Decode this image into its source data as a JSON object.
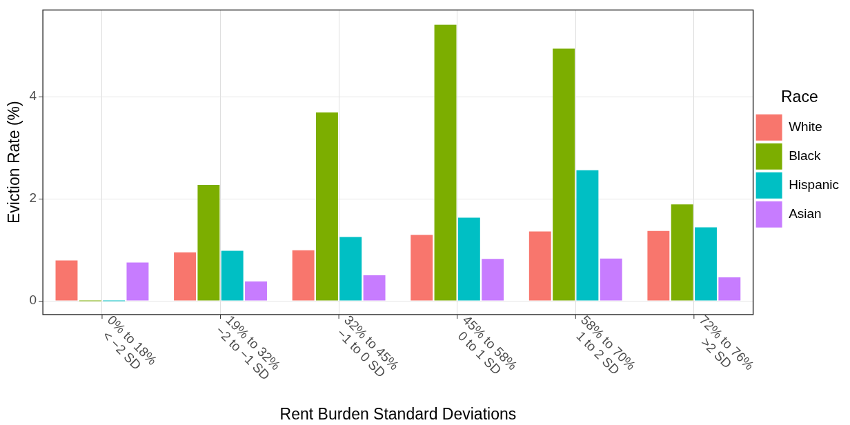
{
  "chart_data": {
    "type": "bar",
    "xlabel": "Rent Burden Standard Deviations",
    "ylabel": "Eviction Rate (%)",
    "legend_title": "Race",
    "categories": [
      "0% to 18%\n< −2 SD",
      "19% to 32%\n−2 to −1 SD",
      "32% to 45%\n−1 to 0 SD",
      "45% to 58%\n0 to 1 SD",
      "58% to 70%\n1 to 2 SD",
      "72% to 76%\n>2 SD"
    ],
    "series": [
      {
        "name": "White",
        "color": "#f8766d",
        "values": [
          0.79,
          0.95,
          0.99,
          1.29,
          1.36,
          1.37
        ]
      },
      {
        "name": "Black",
        "color": "#7cae00",
        "values": [
          0,
          2.27,
          3.69,
          5.41,
          4.94,
          1.89
        ]
      },
      {
        "name": "Hispanic",
        "color": "#00bfc4",
        "values": [
          0,
          0.98,
          1.25,
          1.63,
          2.56,
          1.44
        ]
      },
      {
        "name": "Asian",
        "color": "#c77cff",
        "values": [
          0.75,
          0.38,
          0.5,
          0.82,
          0.83,
          0.46
        ]
      }
    ],
    "ylim": [
      -0.27,
      5.7
    ],
    "yticks": [
      0,
      2,
      4
    ],
    "grid": true,
    "legend": "right"
  }
}
